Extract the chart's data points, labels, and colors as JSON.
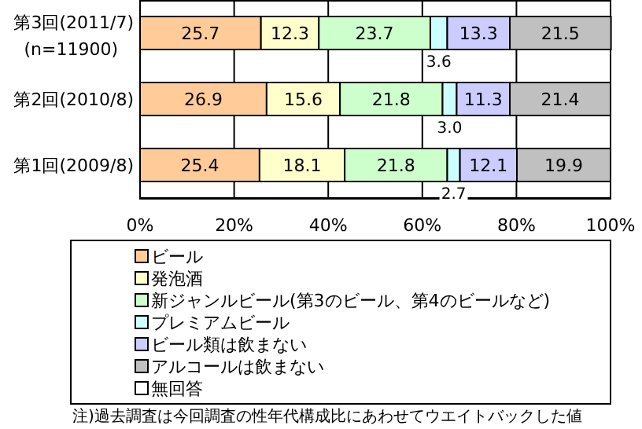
{
  "chart_data": {
    "type": "bar",
    "orientation": "horizontal",
    "stacked": true,
    "grid": "x",
    "legend": "bottom",
    "categories": [
      "第3回(2011/7)\n(n=11900)",
      "第2回(2010/8)",
      "第1回(2009/8)"
    ],
    "xlim": [
      0,
      100
    ],
    "xticks": [
      {
        "value": 0,
        "label": "0%"
      },
      {
        "value": 20,
        "label": "20%"
      },
      {
        "value": 40,
        "label": "40%"
      },
      {
        "value": 60,
        "label": "60%"
      },
      {
        "value": 80,
        "label": "80%"
      },
      {
        "value": 100,
        "label": "100%"
      }
    ],
    "series": [
      {
        "name": "ビール",
        "color": "#ffcc99",
        "values": [
          25.7,
          26.9,
          25.4
        ],
        "value_labels": [
          "25.7",
          "26.9",
          "25.4"
        ]
      },
      {
        "name": "発泡酒",
        "color": "#ffffcc",
        "values": [
          12.3,
          15.6,
          18.1
        ],
        "value_labels": [
          "12.3",
          "15.6",
          "18.1"
        ]
      },
      {
        "name": "新ジャンルビール(第3のビール、第4のビールなど)",
        "color": "#ccffcc",
        "values": [
          23.7,
          21.8,
          21.8
        ],
        "value_labels": [
          "23.7",
          "21.8",
          "21.8"
        ]
      },
      {
        "name": "プレミアムビール",
        "color": "#ccffff",
        "values": [
          3.6,
          3.0,
          2.7
        ],
        "value_labels": [
          "3.6",
          "3.0",
          "2.7"
        ]
      },
      {
        "name": "ビール類は飲まない",
        "color": "#ccccff",
        "values": [
          13.3,
          11.3,
          12.1
        ],
        "value_labels": [
          "13.3",
          "11.3",
          "12.1"
        ]
      },
      {
        "name": "アルコールは飲まない",
        "color": "#c0c0c0",
        "values": [
          21.5,
          21.4,
          19.9
        ],
        "value_labels": [
          "21.5",
          "21.4",
          "19.9"
        ]
      },
      {
        "name": "無回答",
        "color": "#ffffff",
        "values": [
          null,
          null,
          null
        ]
      }
    ],
    "annotations": [
      "注)過去調査は今回調査の性年代構成比にあわせてウエイトバックした値"
    ]
  }
}
